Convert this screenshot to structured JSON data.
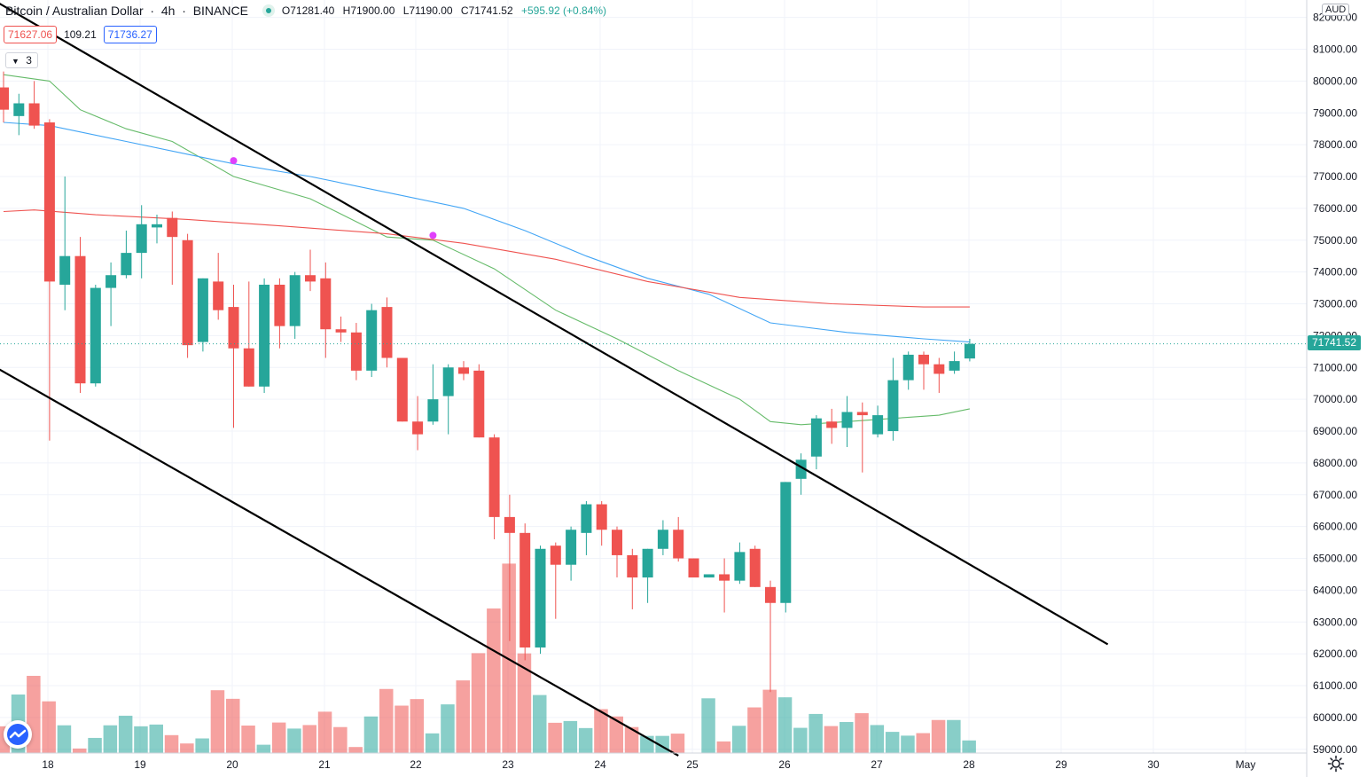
{
  "header": {
    "symbol": "Bitcoin / Australian Dollar",
    "interval": "4h",
    "exchange": "BINANCE",
    "open": "O71281.40",
    "high": "H71900.00",
    "low": "L71190.00",
    "close": "C71741.52",
    "change": "+595.92 (+0.84%)"
  },
  "quote": {
    "bid": "71627.06",
    "spread": "109.21",
    "ask": "71736.27"
  },
  "indicators_toggle": {
    "count": "3"
  },
  "currency": "AUD",
  "last_price_label": "71741.52",
  "colors": {
    "up": "#26a69a",
    "down": "#ef5350",
    "ma_fast": "#66bb6a",
    "ma_mid": "#42a5f5",
    "ma_slow": "#ef5350",
    "trendline": "#000000",
    "cross_marker": "#e040fb"
  },
  "chart_data": {
    "type": "candlestick",
    "interval": "4h",
    "y_axis": {
      "ticks": [
        59000,
        60000,
        61000,
        62000,
        63000,
        64000,
        65000,
        66000,
        67000,
        68000,
        69000,
        70000,
        71000,
        72000,
        73000,
        74000,
        75000,
        76000,
        77000,
        78000,
        79000,
        80000,
        81000,
        82000
      ],
      "tick_labels": [
        "59000.00",
        "60000.00",
        "61000.00",
        "62000.00",
        "63000.00",
        "64000.00",
        "65000.00",
        "66000.00",
        "67000.00",
        "68000.00",
        "69000.00",
        "70000.00",
        "71000.00",
        "72000.00",
        "73000.00",
        "74000.00",
        "75000.00",
        "76000.00",
        "77000.00",
        "78000.00",
        "79000.00",
        "80000.00",
        "81000.00",
        "82000.00"
      ],
      "range": [
        58900,
        82300
      ]
    },
    "x_axis": {
      "tick_labels": [
        "18",
        "19",
        "20",
        "21",
        "22",
        "23",
        "24",
        "25",
        "26",
        "27",
        "28",
        "29",
        "30",
        "May"
      ]
    },
    "grid": true,
    "candles": [
      [
        79800,
        80300,
        78700,
        79100
      ],
      [
        78900,
        79600,
        78300,
        79300
      ],
      [
        79300,
        80000,
        78500,
        78600
      ],
      [
        78700,
        78800,
        68700,
        73700
      ],
      [
        73600,
        77000,
        72800,
        74500
      ],
      [
        74500,
        75100,
        70200,
        70500
      ],
      [
        70500,
        73600,
        70400,
        73500
      ],
      [
        73500,
        74300,
        72300,
        73900
      ],
      [
        73900,
        75300,
        73800,
        74600
      ],
      [
        74600,
        76100,
        73800,
        75500
      ],
      [
        75400,
        75800,
        74900,
        75500
      ],
      [
        75700,
        75900,
        73600,
        75100
      ],
      [
        75000,
        75200,
        71300,
        71700
      ],
      [
        71800,
        73800,
        71500,
        73800
      ],
      [
        73700,
        74600,
        72500,
        72800
      ],
      [
        72900,
        73600,
        69100,
        71600
      ],
      [
        71600,
        73700,
        70400,
        70400
      ],
      [
        70400,
        73800,
        70200,
        73600
      ],
      [
        73600,
        73800,
        71600,
        72300
      ],
      [
        72300,
        74000,
        71900,
        73900
      ],
      [
        73900,
        74700,
        73400,
        73700
      ],
      [
        73800,
        74300,
        71300,
        72200
      ],
      [
        72200,
        72600,
        71800,
        72100
      ],
      [
        72100,
        72400,
        70600,
        70900
      ],
      [
        70900,
        73000,
        70700,
        72800
      ],
      [
        72900,
        73200,
        71000,
        71300
      ],
      [
        71300,
        71300,
        69300,
        69300
      ],
      [
        69300,
        70100,
        68400,
        68900
      ],
      [
        69300,
        71100,
        69200,
        70000
      ],
      [
        70100,
        71100,
        68900,
        71000
      ],
      [
        71000,
        71200,
        70600,
        70800
      ],
      [
        70900,
        71100,
        68800,
        68800
      ],
      [
        68800,
        68900,
        65600,
        66300
      ],
      [
        66300,
        67000,
        62400,
        65800
      ],
      [
        65800,
        66100,
        61800,
        62200
      ],
      [
        62200,
        65400,
        62000,
        65300
      ],
      [
        65400,
        65500,
        63100,
        64800
      ],
      [
        64800,
        66000,
        64300,
        65900
      ],
      [
        65800,
        66800,
        65100,
        66700
      ],
      [
        66700,
        66800,
        65400,
        65900
      ],
      [
        65900,
        66000,
        64400,
        65100
      ],
      [
        65100,
        65300,
        63400,
        64400
      ],
      [
        64400,
        65300,
        63600,
        65300
      ],
      [
        65300,
        66200,
        65100,
        65900
      ],
      [
        65900,
        66300,
        64900,
        65000
      ],
      [
        65000,
        65000,
        64400,
        64400
      ],
      [
        64400,
        64500,
        64400,
        64500
      ],
      [
        64500,
        65000,
        63300,
        64300
      ],
      [
        64300,
        65500,
        64200,
        65200
      ],
      [
        65300,
        65400,
        64100,
        64100
      ],
      [
        64100,
        64300,
        60800,
        63600
      ],
      [
        63600,
        67400,
        63300,
        67400
      ],
      [
        67500,
        68300,
        67000,
        68100
      ],
      [
        68200,
        69500,
        67800,
        69400
      ],
      [
        69300,
        69700,
        68600,
        69100
      ],
      [
        69100,
        70100,
        68500,
        69600
      ],
      [
        69600,
        69900,
        67700,
        69500
      ],
      [
        68900,
        69800,
        68800,
        69500
      ],
      [
        69000,
        71300,
        68700,
        70600
      ],
      [
        70600,
        71500,
        70300,
        71400
      ],
      [
        71400,
        71500,
        70300,
        71100
      ],
      [
        71100,
        71300,
        70200,
        70800
      ],
      [
        70900,
        71500,
        70800,
        71200
      ],
      [
        71281.4,
        71900,
        71190,
        71741.52
      ]
    ],
    "volume": [
      1060,
      2320,
      3060,
      2050,
      1100,
      180,
      600,
      1100,
      1480,
      1060,
      1130,
      710,
      380,
      580,
      2490,
      2150,
      1090,
      330,
      1210,
      970,
      1110,
      1640,
      1030,
      240,
      1450,
      2540,
      1880,
      2140,
      780,
      1930,
      2880,
      3960,
      5730,
      7510,
      3950,
      2300,
      1200,
      1270,
      990,
      1740,
      1450,
      1030,
      680,
      680,
      770,
      0,
      2170,
      460,
      1080,
      1810,
      2510,
      2210,
      1000,
      1550,
      1070,
      1230,
      1580,
      1110,
      840,
      690,
      790,
      1310,
      1310,
      500
    ],
    "moving_averages": [
      {
        "color": "#66bb6a",
        "points": [
          [
            0,
            80200
          ],
          [
            3,
            80000
          ],
          [
            5,
            79100
          ],
          [
            8,
            78500
          ],
          [
            11,
            78100
          ],
          [
            15,
            77000
          ],
          [
            20,
            76300
          ],
          [
            25,
            75100
          ],
          [
            28,
            75000
          ],
          [
            32,
            74100
          ],
          [
            36,
            72800
          ],
          [
            40,
            71900
          ],
          [
            44,
            70900
          ],
          [
            48,
            70000
          ],
          [
            50,
            69300
          ],
          [
            52,
            69200
          ],
          [
            55,
            69300
          ],
          [
            58,
            69400
          ],
          [
            61,
            69500
          ],
          [
            63,
            69700
          ]
        ]
      },
      {
        "color": "#42a5f5",
        "points": [
          [
            0,
            78700
          ],
          [
            3,
            78600
          ],
          [
            8,
            78100
          ],
          [
            12,
            77700
          ],
          [
            15,
            77400
          ],
          [
            20,
            77000
          ],
          [
            25,
            76500
          ],
          [
            30,
            76000
          ],
          [
            34,
            75300
          ],
          [
            38,
            74500
          ],
          [
            42,
            73800
          ],
          [
            46,
            73300
          ],
          [
            50,
            72400
          ],
          [
            55,
            72100
          ],
          [
            60,
            71900
          ],
          [
            63,
            71800
          ]
        ]
      },
      {
        "color": "#ef5350",
        "points": [
          [
            0,
            75900
          ],
          [
            2,
            75950
          ],
          [
            6,
            75800
          ],
          [
            12,
            75650
          ],
          [
            18,
            75450
          ],
          [
            25,
            75200
          ],
          [
            30,
            74900
          ],
          [
            36,
            74400
          ],
          [
            42,
            73700
          ],
          [
            48,
            73200
          ],
          [
            54,
            73000
          ],
          [
            60,
            72900
          ],
          [
            63,
            72900
          ]
        ]
      }
    ],
    "trendlines": [
      {
        "from": [
          -0.5,
          82500
        ],
        "to": [
          72,
          62300
        ]
      },
      {
        "from": [
          -0.5,
          71000
        ],
        "to": [
          44,
          58800
        ]
      }
    ],
    "cross_markers": [
      [
        15,
        77500
      ],
      [
        28,
        75150
      ]
    ]
  }
}
